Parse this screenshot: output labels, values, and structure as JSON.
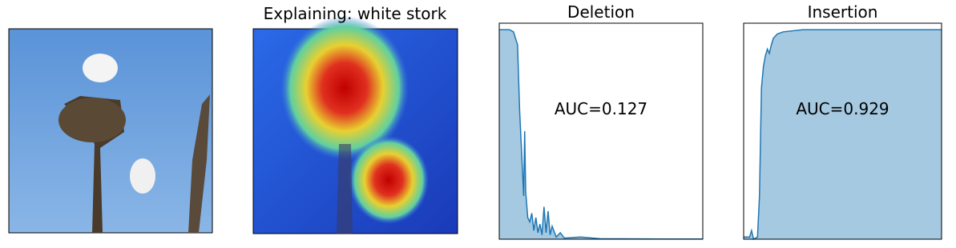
{
  "explanation": {
    "title": "Explaining: white stork"
  },
  "chart_data": [
    {
      "type": "area",
      "title": "Deletion",
      "annotation": "AUC=0.127",
      "color": "#1f77b4",
      "xlim": [
        0,
        1
      ],
      "ylim": [
        0,
        1
      ],
      "x": [
        0,
        0.05,
        0.07,
        0.09,
        0.1,
        0.11,
        0.12,
        0.125,
        0.13,
        0.14,
        0.15,
        0.16,
        0.17,
        0.18,
        0.19,
        0.2,
        0.21,
        0.22,
        0.23,
        0.24,
        0.25,
        0.26,
        0.28,
        0.3,
        0.32,
        0.4,
        0.5,
        0.6,
        0.8,
        1.0
      ],
      "values": [
        0.97,
        0.97,
        0.96,
        0.9,
        0.6,
        0.4,
        0.2,
        0.5,
        0.22,
        0.1,
        0.08,
        0.12,
        0.04,
        0.1,
        0.03,
        0.07,
        0.02,
        0.15,
        0.03,
        0.13,
        0.02,
        0.06,
        0.01,
        0.03,
        0.005,
        0.01,
        0.002,
        0.002,
        0.001,
        0.001
      ]
    },
    {
      "type": "area",
      "title": "Insertion",
      "annotation": "AUC=0.929",
      "color": "#1f77b4",
      "xlim": [
        0,
        1
      ],
      "ylim": [
        0,
        1
      ],
      "x": [
        0,
        0.03,
        0.04,
        0.05,
        0.07,
        0.08,
        0.09,
        0.1,
        0.11,
        0.12,
        0.13,
        0.14,
        0.15,
        0.17,
        0.2,
        0.3,
        0.5,
        0.7,
        1.0
      ],
      "values": [
        0.01,
        0.01,
        0.04,
        0.0,
        0.01,
        0.2,
        0.7,
        0.8,
        0.85,
        0.88,
        0.86,
        0.9,
        0.93,
        0.95,
        0.96,
        0.97,
        0.97,
        0.97,
        0.97
      ]
    }
  ]
}
